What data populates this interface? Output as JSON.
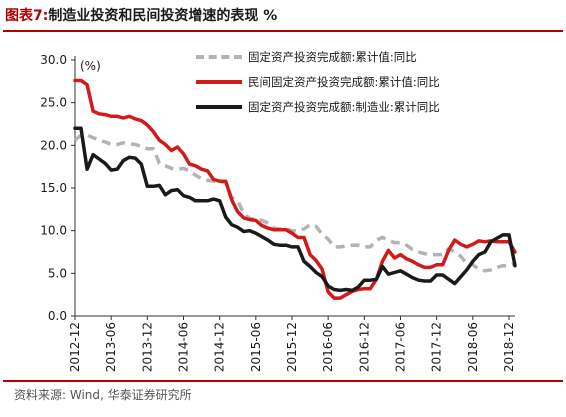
{
  "figure": {
    "label": "图表7:",
    "title": "制造业投资和民间投资增速的表现 %",
    "source": "资料来源: Wind, 华泰证券研究所"
  },
  "chart_data": {
    "type": "line",
    "ylabel": "(%)",
    "ylim": [
      0,
      30
    ],
    "yticks": [
      "0.0",
      "5.0",
      "10.0",
      "15.0",
      "20.0",
      "25.0",
      "30.0"
    ],
    "xticks": [
      "2012-12",
      "2013-06",
      "2013-12",
      "2014-06",
      "2014-12",
      "2015-06",
      "2015-12",
      "2016-06",
      "2016-12",
      "2017-06",
      "2017-12",
      "2018-06",
      "2018-12"
    ],
    "x": [
      "2012-12",
      "2013-01",
      "2013-02",
      "2013-03",
      "2013-04",
      "2013-05",
      "2013-06",
      "2013-07",
      "2013-08",
      "2013-09",
      "2013-10",
      "2013-11",
      "2013-12",
      "2014-01",
      "2014-02",
      "2014-03",
      "2014-04",
      "2014-05",
      "2014-06",
      "2014-07",
      "2014-08",
      "2014-09",
      "2014-10",
      "2014-11",
      "2014-12",
      "2015-01",
      "2015-02",
      "2015-03",
      "2015-04",
      "2015-05",
      "2015-06",
      "2015-07",
      "2015-08",
      "2015-09",
      "2015-10",
      "2015-11",
      "2015-12",
      "2016-01",
      "2016-02",
      "2016-03",
      "2016-04",
      "2016-05",
      "2016-06",
      "2016-07",
      "2016-08",
      "2016-09",
      "2016-10",
      "2016-11",
      "2016-12",
      "2017-01",
      "2017-02",
      "2017-03",
      "2017-04",
      "2017-05",
      "2017-06",
      "2017-07",
      "2017-08",
      "2017-09",
      "2017-10",
      "2017-11",
      "2017-12",
      "2018-01",
      "2018-02",
      "2018-03",
      "2018-04",
      "2018-05",
      "2018-06",
      "2018-07",
      "2018-08",
      "2018-09",
      "2018-10",
      "2018-11",
      "2018-12",
      "2019-01"
    ],
    "series": [
      {
        "name": "固定资产投资完成额:累计值:同比",
        "color": "#b3b3b3",
        "style": "dashed",
        "values": [
          20.6,
          21.2,
          21.2,
          20.9,
          20.6,
          20.4,
          20.1,
          20.1,
          20.3,
          20.2,
          20.1,
          19.9,
          19.6,
          19.6,
          17.9,
          17.6,
          17.3,
          17.2,
          17.3,
          17.0,
          16.5,
          16.1,
          15.9,
          15.8,
          15.7,
          15.7,
          13.9,
          13.5,
          12.0,
          11.4,
          11.4,
          11.2,
          10.9,
          10.3,
          10.2,
          10.2,
          10.0,
          10.0,
          10.2,
          10.7,
          10.5,
          9.6,
          9.0,
          8.1,
          8.1,
          8.2,
          8.3,
          8.3,
          8.1,
          8.1,
          8.9,
          9.2,
          8.9,
          8.6,
          8.6,
          8.3,
          7.8,
          7.5,
          7.3,
          7.2,
          7.2,
          7.2,
          7.9,
          7.5,
          7.0,
          6.1,
          6.0,
          5.5,
          5.3,
          5.4,
          5.7,
          5.9,
          5.9,
          6.1
        ]
      },
      {
        "name": "民间固定资产投资完成额:累计值:同比",
        "color": "#d11a1a",
        "style": "solid",
        "values": [
          27.6,
          27.6,
          27.1,
          24.0,
          23.7,
          23.6,
          23.4,
          23.4,
          23.2,
          23.4,
          23.1,
          22.9,
          22.4,
          21.6,
          20.6,
          20.1,
          19.4,
          19.8,
          19.0,
          17.8,
          17.6,
          17.2,
          17.0,
          16.0,
          15.8,
          15.8,
          13.6,
          12.2,
          11.5,
          11.3,
          11.2,
          10.6,
          10.3,
          10.1,
          10.1,
          10.1,
          9.7,
          9.2,
          9.2,
          7.2,
          6.5,
          5.5,
          2.8,
          2.1,
          2.1,
          2.5,
          2.9,
          3.1,
          3.2,
          3.2,
          4.3,
          6.4,
          7.7,
          6.8,
          7.2,
          6.7,
          6.4,
          6.0,
          5.7,
          5.7,
          6.0,
          6.0,
          7.7,
          8.9,
          8.4,
          8.1,
          8.4,
          8.8,
          8.7,
          8.8,
          8.7,
          8.7,
          8.7,
          7.5
        ]
      },
      {
        "name": "固定资产投资完成额:制造业:累计同比",
        "color": "#1a1a1a",
        "style": "solid",
        "values": [
          22.0,
          22.0,
          17.2,
          18.9,
          18.4,
          17.9,
          17.1,
          17.2,
          18.2,
          18.6,
          18.5,
          17.8,
          15.2,
          15.2,
          15.3,
          14.2,
          14.7,
          14.8,
          14.1,
          13.9,
          13.5,
          13.5,
          13.5,
          13.7,
          13.5,
          11.6,
          10.7,
          10.4,
          9.9,
          10.0,
          9.7,
          9.3,
          8.9,
          8.4,
          8.3,
          8.3,
          8.1,
          8.1,
          6.4,
          5.8,
          5.1,
          4.6,
          3.5,
          3.1,
          3.0,
          3.1,
          3.0,
          3.4,
          4.2,
          4.2,
          4.3,
          5.8,
          4.9,
          5.1,
          5.3,
          4.9,
          4.5,
          4.2,
          4.1,
          4.1,
          4.8,
          4.8,
          4.3,
          3.8,
          4.6,
          5.4,
          6.4,
          7.2,
          7.5,
          8.7,
          9.1,
          9.5,
          9.5,
          5.9
        ]
      }
    ]
  }
}
